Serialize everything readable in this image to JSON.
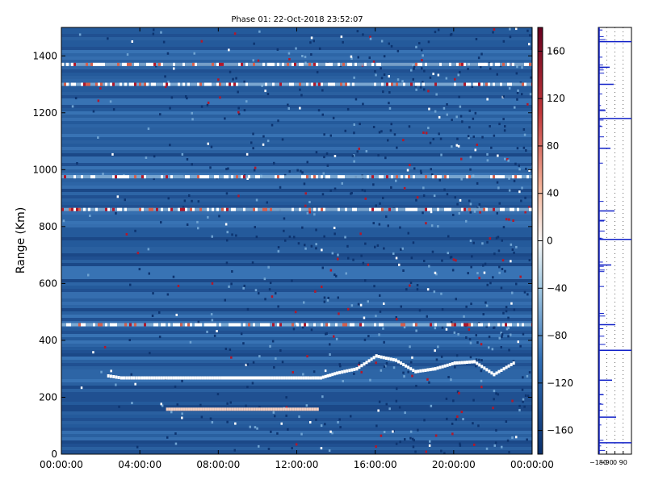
{
  "chart_data": [
    {
      "type": "heatmap",
      "title": "Phase 01: 22-Oct-2018 23:52:07",
      "xlabel": "",
      "ylabel": "Range (Km)",
      "xlim": [
        "00:00:00",
        "24:00:00"
      ],
      "ylim": [
        0,
        1500
      ],
      "x_ticks": [
        "00:00:00",
        "04:00:00",
        "08:00:00",
        "12:00:00",
        "16:00:00",
        "20:00:00",
        "00:00:00"
      ],
      "y_ticks": [
        0,
        200,
        400,
        600,
        800,
        1000,
        1200,
        1400
      ],
      "colorbar": {
        "range": [
          -180,
          180
        ],
        "ticks": [
          160,
          120,
          80,
          40,
          0,
          -40,
          -80,
          -120,
          -160
        ],
        "colormap": "RdBu_r",
        "colors": {
          "low": "#0a2f6b",
          "mid": "#f7f7f7",
          "high": "#67001f",
          "background": "#2a60a0"
        }
      },
      "bright_bands_km": [
        1370,
        1300,
        975,
        860,
        455
      ],
      "traces": [
        {
          "name": "",
          "color": "#ffffff",
          "points": [
            {
              "t": "02:20",
              "r": 275
            },
            {
              "t": "03:00",
              "r": 268
            },
            {
              "t": "04:10",
              "r": 268
            },
            {
              "t": "13:10",
              "r": 268
            },
            {
              "t": "14:00",
              "r": 285
            },
            {
              "t": "15:00",
              "r": 300
            },
            {
              "t": "16:00",
              "r": 345
            },
            {
              "t": "17:00",
              "r": 330
            },
            {
              "t": "18:00",
              "r": 290
            },
            {
              "t": "19:00",
              "r": 300
            },
            {
              "t": "20:00",
              "r": 320
            },
            {
              "t": "21:00",
              "r": 325
            },
            {
              "t": "22:00",
              "r": 280
            },
            {
              "t": "23:00",
              "r": 320
            }
          ]
        },
        {
          "name": "",
          "color": "#f6d0c0",
          "points": [
            {
              "t": "05:20",
              "r": 158
            },
            {
              "t": "13:00",
              "r": 158
            }
          ]
        }
      ]
    },
    {
      "type": "line",
      "title": "",
      "xlabel": "",
      "ylabel": "",
      "xlim": [
        -180,
        180
      ],
      "x_ticks": [
        -180,
        -90,
        0,
        90
      ],
      "x_tick_labels": [
        "−180",
        "−90",
        "0",
        "90"
      ],
      "grid": true,
      "line_color": "#1020c8",
      "spikes_km": [
        1450,
        1360,
        1300,
        1180,
        1075,
        855,
        755,
        665,
        455,
        365,
        260,
        130,
        40
      ]
    }
  ]
}
